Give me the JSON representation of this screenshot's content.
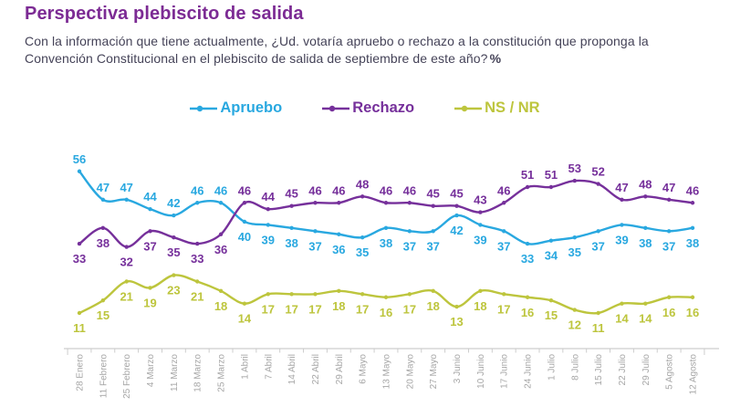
{
  "header": {
    "title": "Perspectiva plebiscito de salida",
    "subtitle_line1": "Con la información que tiene actualmente, ¿Ud. votaría apruebo o rechazo a la constitución que proponga la",
    "subtitle_line2": "Convención Constitucional en el plebiscito de salida de septiembre de este año?",
    "subtitle_suffix": "%"
  },
  "colors": {
    "title": "#7C2B94",
    "subtitle": "#454358",
    "axis_line": "#CDCDCD",
    "tick_label": "#A6A6A6",
    "background": "#FFFFFF"
  },
  "chart_data": {
    "type": "line",
    "title": "Perspectiva plebiscito de salida",
    "categories": [
      "28 Enero",
      "11 Febrero",
      "25 Febrero",
      "4 Marzo",
      "11 Marzo",
      "18 Marzo",
      "25 Marzo",
      "1 Abril",
      "7 Abril",
      "14 Abril",
      "22 Abril",
      "29 Abril",
      "6 Mayo",
      "13 Mayo",
      "20 Mayo",
      "27 Mayo",
      "3 Junio",
      "10 Junio",
      "17 Junio",
      "24 Junio",
      "1 Julio",
      "8 Julio",
      "15 Julio",
      "22 Julio",
      "29 Julio",
      "5 Agosto",
      "12 Agosto"
    ],
    "series": [
      {
        "key": "apruebo",
        "name": "Apruebo",
        "color": "#29A8E0",
        "values": [
          56,
          47,
          47,
          44,
          42,
          46,
          46,
          40,
          39,
          38,
          37,
          36,
          35,
          38,
          37,
          37,
          42,
          39,
          37,
          33,
          34,
          35,
          37,
          39,
          38,
          37,
          38
        ]
      },
      {
        "key": "rechazo",
        "name": "Rechazo",
        "color": "#76309B",
        "values": [
          33,
          38,
          32,
          37,
          35,
          33,
          36,
          46,
          44,
          45,
          46,
          46,
          48,
          46,
          46,
          45,
          45,
          43,
          46,
          51,
          51,
          53,
          52,
          47,
          48,
          47,
          46
        ]
      },
      {
        "key": "ns-nr",
        "name": "NS / NR",
        "color": "#BDC53D",
        "values": [
          11,
          15,
          21,
          19,
          23,
          21,
          18,
          14,
          17,
          17,
          17,
          18,
          17,
          16,
          17,
          18,
          13,
          18,
          17,
          16,
          15,
          12,
          11,
          14,
          14,
          16,
          16
        ]
      }
    ],
    "xlabel": "",
    "ylabel": "",
    "ylim": [
      0,
      60
    ],
    "grid": false,
    "markers": true,
    "data_labels": true,
    "legend_position": "top-center"
  }
}
